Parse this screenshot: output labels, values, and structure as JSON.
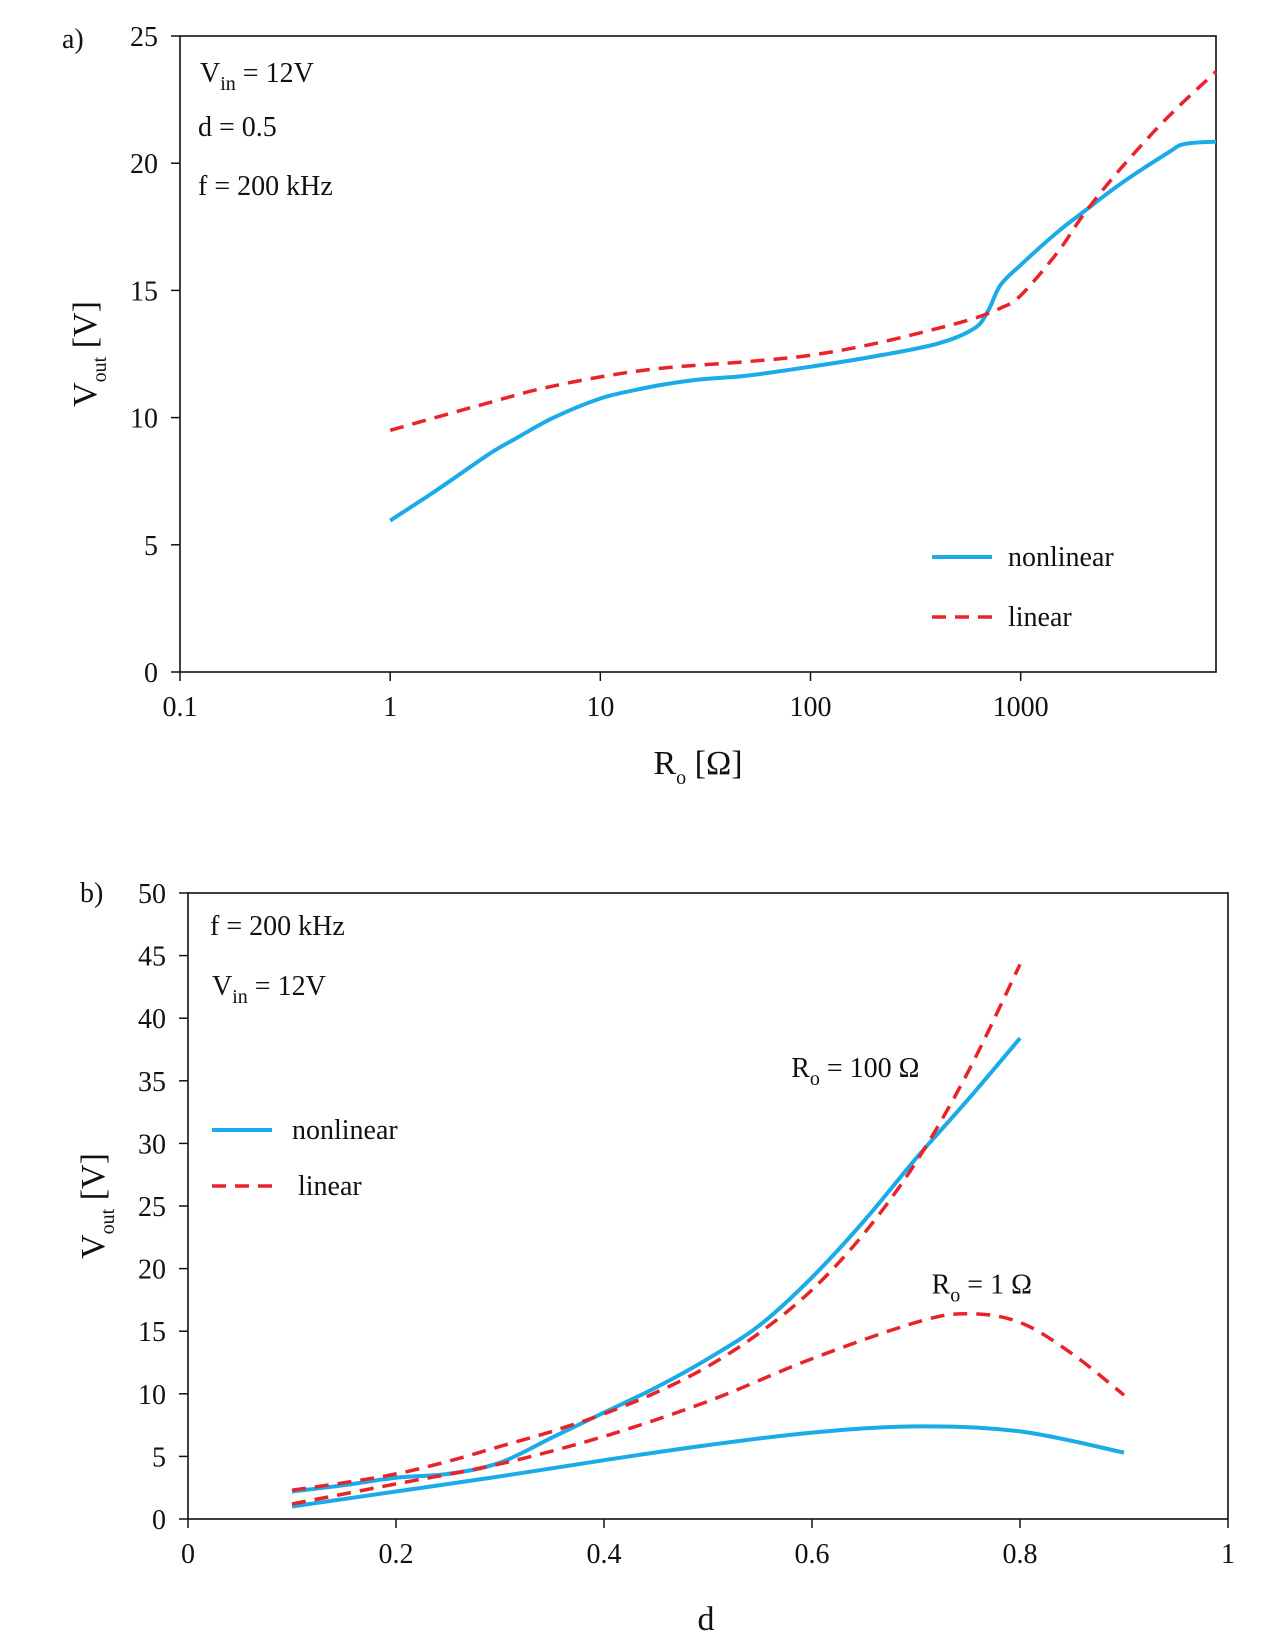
{
  "chart_data": [
    {
      "panel": "a)",
      "type": "line",
      "xscale": "log",
      "xlim": [
        0.1,
        8500
      ],
      "ylim": [
        0,
        25
      ],
      "xticks": [
        0.1,
        1,
        10,
        100,
        1000
      ],
      "xtick_labels": [
        "0.1",
        "1",
        "10",
        "100",
        "1000"
      ],
      "yticks": [
        0,
        5,
        10,
        15,
        20,
        25
      ],
      "ytick_labels": [
        "0",
        "5",
        "10",
        "15",
        "20",
        "25"
      ],
      "xlabel": {
        "main": "R",
        "sub": "o",
        "rest": " [Ω]"
      },
      "ylabel": {
        "main": "V",
        "sub": "out",
        "rest": " [V]"
      },
      "annotations": [
        {
          "main": "V",
          "sub": "in",
          "rest": " = 12V"
        },
        {
          "main": "d = 0.5",
          "sub": "",
          "rest": ""
        },
        {
          "main": "f = 200 kHz",
          "sub": "",
          "rest": ""
        }
      ],
      "legend": {
        "position": "bottom-right",
        "entries": [
          "nonlinear",
          "linear"
        ]
      },
      "series": [
        {
          "name": "nonlinear",
          "color": "#1aabe8",
          "dashed": false,
          "x": [
            1,
            1.5,
            2,
            3,
            4,
            6,
            10,
            15,
            20,
            30,
            50,
            100,
            200,
            400,
            600,
            700,
            800,
            1000,
            1500,
            2000,
            3000,
            5000,
            6000,
            8500
          ],
          "y": [
            5.95,
            6.9,
            7.6,
            8.6,
            9.2,
            10.0,
            10.75,
            11.1,
            11.3,
            11.5,
            11.65,
            12.0,
            12.4,
            12.9,
            13.5,
            14.2,
            15.2,
            16.0,
            17.3,
            18.1,
            19.2,
            20.4,
            20.75,
            20.85
          ]
        },
        {
          "name": "linear",
          "color": "#e8232a",
          "dashed": true,
          "x": [
            1,
            2,
            3,
            5,
            10,
            20,
            50,
            100,
            200,
            400,
            600,
            800,
            1000,
            1500,
            2000,
            3000,
            5000,
            8500
          ],
          "y": [
            9.5,
            10.2,
            10.6,
            11.1,
            11.6,
            11.95,
            12.2,
            12.45,
            12.9,
            13.5,
            13.9,
            14.3,
            14.8,
            16.5,
            18.0,
            19.8,
            21.8,
            23.6
          ]
        }
      ]
    },
    {
      "panel": "b)",
      "type": "line",
      "xscale": "linear",
      "xlim": [
        0,
        1
      ],
      "ylim": [
        0,
        50
      ],
      "xticks": [
        0,
        0.2,
        0.4,
        0.6,
        0.8,
        1
      ],
      "xtick_labels": [
        "0",
        "0.2",
        "0.4",
        "0.6",
        "0.8",
        "1"
      ],
      "yticks": [
        0,
        5,
        10,
        15,
        20,
        25,
        30,
        35,
        40,
        45,
        50
      ],
      "ytick_labels": [
        "0",
        "5",
        "10",
        "15",
        "20",
        "25",
        "30",
        "35",
        "40",
        "45",
        "50"
      ],
      "xlabel": {
        "main": "d",
        "sub": "",
        "rest": ""
      },
      "ylabel": {
        "main": "V",
        "sub": "out",
        "rest": " [V]"
      },
      "annotations": [
        {
          "main": "f = 200 kHz",
          "sub": "",
          "rest": ""
        },
        {
          "main": "V",
          "sub": "in",
          "rest": " = 12V"
        }
      ],
      "curve_labels": [
        {
          "main": "R",
          "sub": "o",
          "rest": " = 100 Ω",
          "x": 0.58,
          "y": 35.3
        },
        {
          "main": "R",
          "sub": "o",
          "rest": " = 1 Ω",
          "x": 0.715,
          "y": 18.0
        }
      ],
      "legend": {
        "position": "center-left",
        "entries": [
          "nonlinear",
          "linear"
        ]
      },
      "series": [
        {
          "name": "nonlinear",
          "group": "R_o = 100 Ω",
          "color": "#1aabe8",
          "dashed": false,
          "x": [
            0.1,
            0.15,
            0.2,
            0.25,
            0.3,
            0.35,
            0.4,
            0.45,
            0.5,
            0.55,
            0.6,
            0.65,
            0.7,
            0.75,
            0.8
          ],
          "y": [
            2.2,
            2.7,
            3.3,
            3.6,
            4.5,
            6.5,
            8.5,
            10.5,
            12.8,
            15.5,
            19.3,
            23.8,
            28.8,
            33.5,
            38.4
          ]
        },
        {
          "name": "linear",
          "group": "R_o = 100 Ω",
          "color": "#e8232a",
          "dashed": true,
          "x": [
            0.1,
            0.15,
            0.2,
            0.25,
            0.3,
            0.35,
            0.4,
            0.45,
            0.5,
            0.55,
            0.6,
            0.65,
            0.7,
            0.75,
            0.8
          ],
          "y": [
            2.3,
            2.9,
            3.6,
            4.6,
            5.8,
            7.0,
            8.4,
            10.1,
            12.2,
            14.9,
            18.3,
            22.8,
            28.5,
            35.7,
            44.3
          ]
        },
        {
          "name": "nonlinear",
          "group": "R_o = 1 Ω",
          "color": "#1aabe8",
          "dashed": false,
          "x": [
            0.1,
            0.2,
            0.3,
            0.4,
            0.5,
            0.6,
            0.7,
            0.8,
            0.9
          ],
          "y": [
            1.0,
            2.2,
            3.4,
            4.7,
            5.9,
            6.9,
            7.4,
            7.0,
            5.3
          ]
        },
        {
          "name": "linear",
          "group": "R_o = 1 Ω",
          "color": "#e8232a",
          "dashed": true,
          "x": [
            0.1,
            0.2,
            0.3,
            0.4,
            0.5,
            0.6,
            0.7,
            0.75,
            0.8,
            0.85,
            0.9
          ],
          "y": [
            1.2,
            2.8,
            4.4,
            6.6,
            9.4,
            12.8,
            15.7,
            16.4,
            15.7,
            13.2,
            9.9
          ]
        }
      ]
    }
  ]
}
